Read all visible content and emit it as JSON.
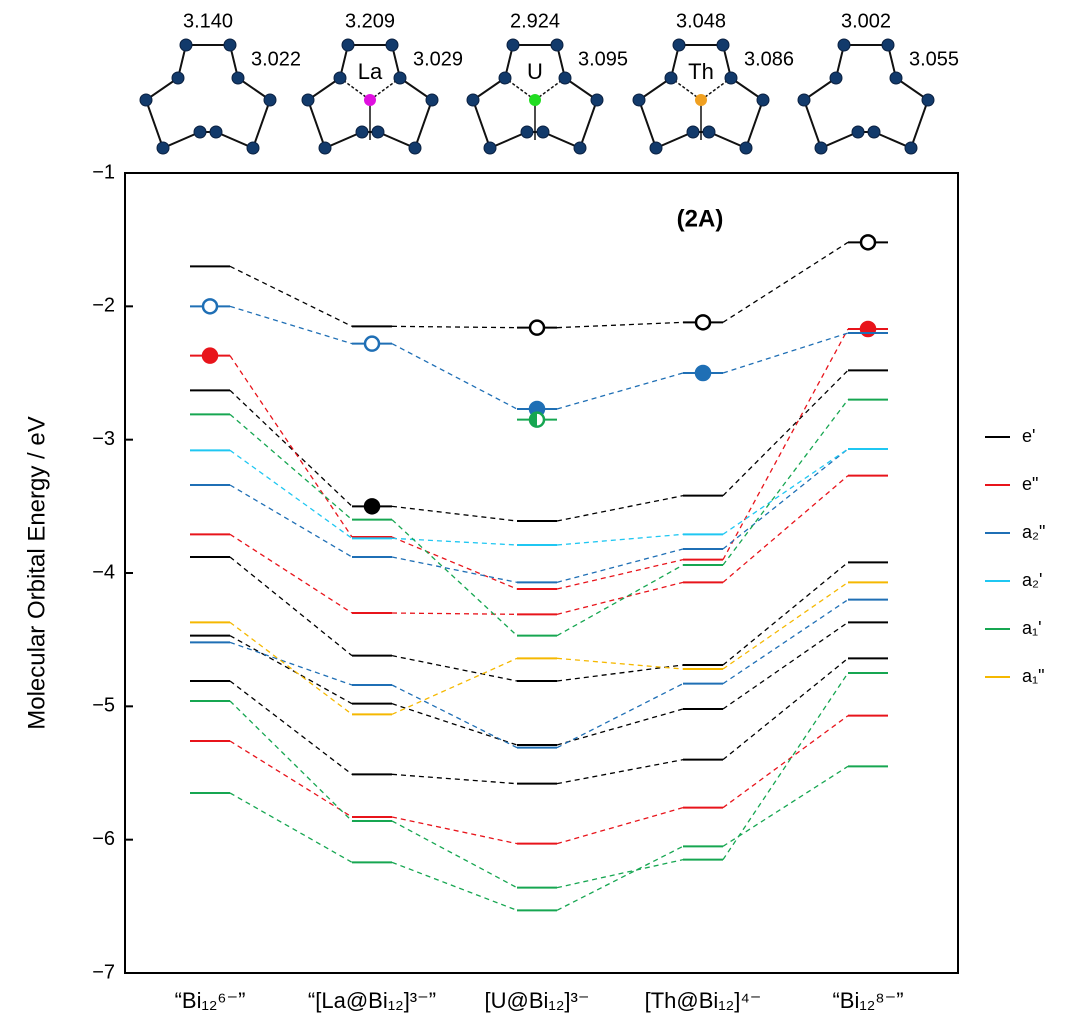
{
  "chart_data": {
    "type": "level",
    "annotation": "(2A)",
    "y_label": "Molecular Orbital Energy / eV",
    "categories": [
      "“Bi₁₂⁶⁻”",
      "“[La@Bi₁₂]³⁻”",
      "[U@Bi₁₂]³⁻",
      "[Th@Bi₁₂]⁴⁻",
      "“Bi₁₂⁸⁻”"
    ],
    "structures": [
      {
        "bond_lengths": [
          "3.140",
          "3.022"
        ]
      },
      {
        "bond_lengths": [
          "3.209",
          "3.029"
        ],
        "metal": "La",
        "metal_color": "#e010e0"
      },
      {
        "bond_lengths": [
          "2.924",
          "3.095"
        ],
        "metal": "U",
        "metal_color": "#22dd22"
      },
      {
        "bond_lengths": [
          "3.048",
          "3.086"
        ],
        "metal": "Th",
        "metal_color": "#f0a020"
      },
      {
        "bond_lengths": [
          "3.002",
          "3.055"
        ]
      }
    ],
    "ylim": [
      -7,
      -1
    ],
    "yticks": [
      {
        "value": -7,
        "label": "−7"
      },
      {
        "value": -6,
        "label": "−6"
      },
      {
        "value": -5,
        "label": "−5"
      },
      {
        "value": -4,
        "label": "−4"
      },
      {
        "value": -3,
        "label": "−3"
      },
      {
        "value": -2,
        "label": "−2"
      },
      {
        "value": -1,
        "label": "−1"
      }
    ],
    "series": [
      {
        "name": "e'",
        "color": "#000000",
        "traces": [
          [
            -1.7,
            -2.15,
            -2.16,
            -2.12,
            -1.52
          ],
          [
            -2.63,
            -3.5,
            -3.61,
            -3.42,
            -2.48
          ],
          [
            -3.88,
            -4.62,
            -4.81,
            -4.69,
            -3.92
          ],
          [
            -4.47,
            -4.98,
            -5.29,
            -5.02,
            -4.37
          ],
          [
            -4.81,
            -5.51,
            -5.58,
            -5.4,
            -4.64
          ]
        ],
        "open_markers": [
          null,
          null,
          -2.16,
          -2.12,
          -1.52
        ],
        "filled_markers": [
          null,
          -3.5,
          null,
          null,
          null
        ]
      },
      {
        "name": "e\"",
        "color": "#e8141b",
        "traces": [
          [
            -2.37,
            -3.73,
            -4.12,
            -3.9,
            -2.17
          ],
          [
            -3.71,
            -4.3,
            -4.31,
            -4.07,
            -3.27
          ],
          [
            -5.26,
            -5.83,
            -6.03,
            -5.76,
            -5.07
          ]
        ],
        "filled_markers": [
          -2.37,
          null,
          null,
          null,
          -2.17
        ]
      },
      {
        "name": "a₂\"",
        "color": "#1f6fb5",
        "traces": [
          [
            -2.0,
            -2.28,
            -2.77,
            -2.5,
            -2.2
          ],
          [
            -3.34,
            -3.88,
            -4.07,
            -3.82,
            -3.07
          ],
          [
            -4.52,
            -4.84,
            -5.31,
            -4.83,
            -4.2
          ]
        ],
        "open_markers": [
          -2.0,
          -2.28,
          null,
          null,
          null
        ],
        "filled_markers": [
          null,
          null,
          -2.77,
          -2.5,
          null
        ]
      },
      {
        "name": "a₂'",
        "color": "#1fc7f2",
        "traces": [
          [
            -3.08,
            -3.74,
            -3.79,
            -3.71,
            -3.07
          ]
        ]
      },
      {
        "name": "a₁'",
        "color": "#16a651",
        "traces": [
          [
            -2.81,
            -3.6,
            -4.47,
            -3.94,
            -2.7
          ],
          [
            -4.96,
            -5.86,
            -6.36,
            -6.15,
            -4.75
          ],
          [
            -5.65,
            -6.17,
            -6.53,
            -6.05,
            -5.45
          ],
          [
            null,
            null,
            -2.85,
            null,
            null
          ]
        ],
        "half_markers": [
          null,
          null,
          -2.85,
          null,
          null
        ]
      },
      {
        "name": "a₁\"",
        "color": "#f5b800",
        "traces": [
          [
            -4.37,
            -5.06,
            -4.64,
            -4.72,
            -4.07
          ]
        ]
      }
    ]
  }
}
